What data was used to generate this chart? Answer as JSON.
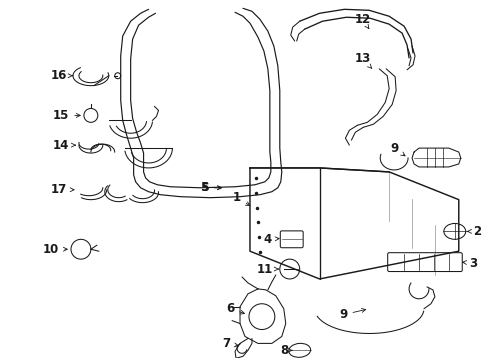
{
  "bg_color": "#ffffff",
  "fig_width": 4.89,
  "fig_height": 3.6,
  "dpi": 100,
  "black": "#1a1a1a",
  "lw": 0.75
}
